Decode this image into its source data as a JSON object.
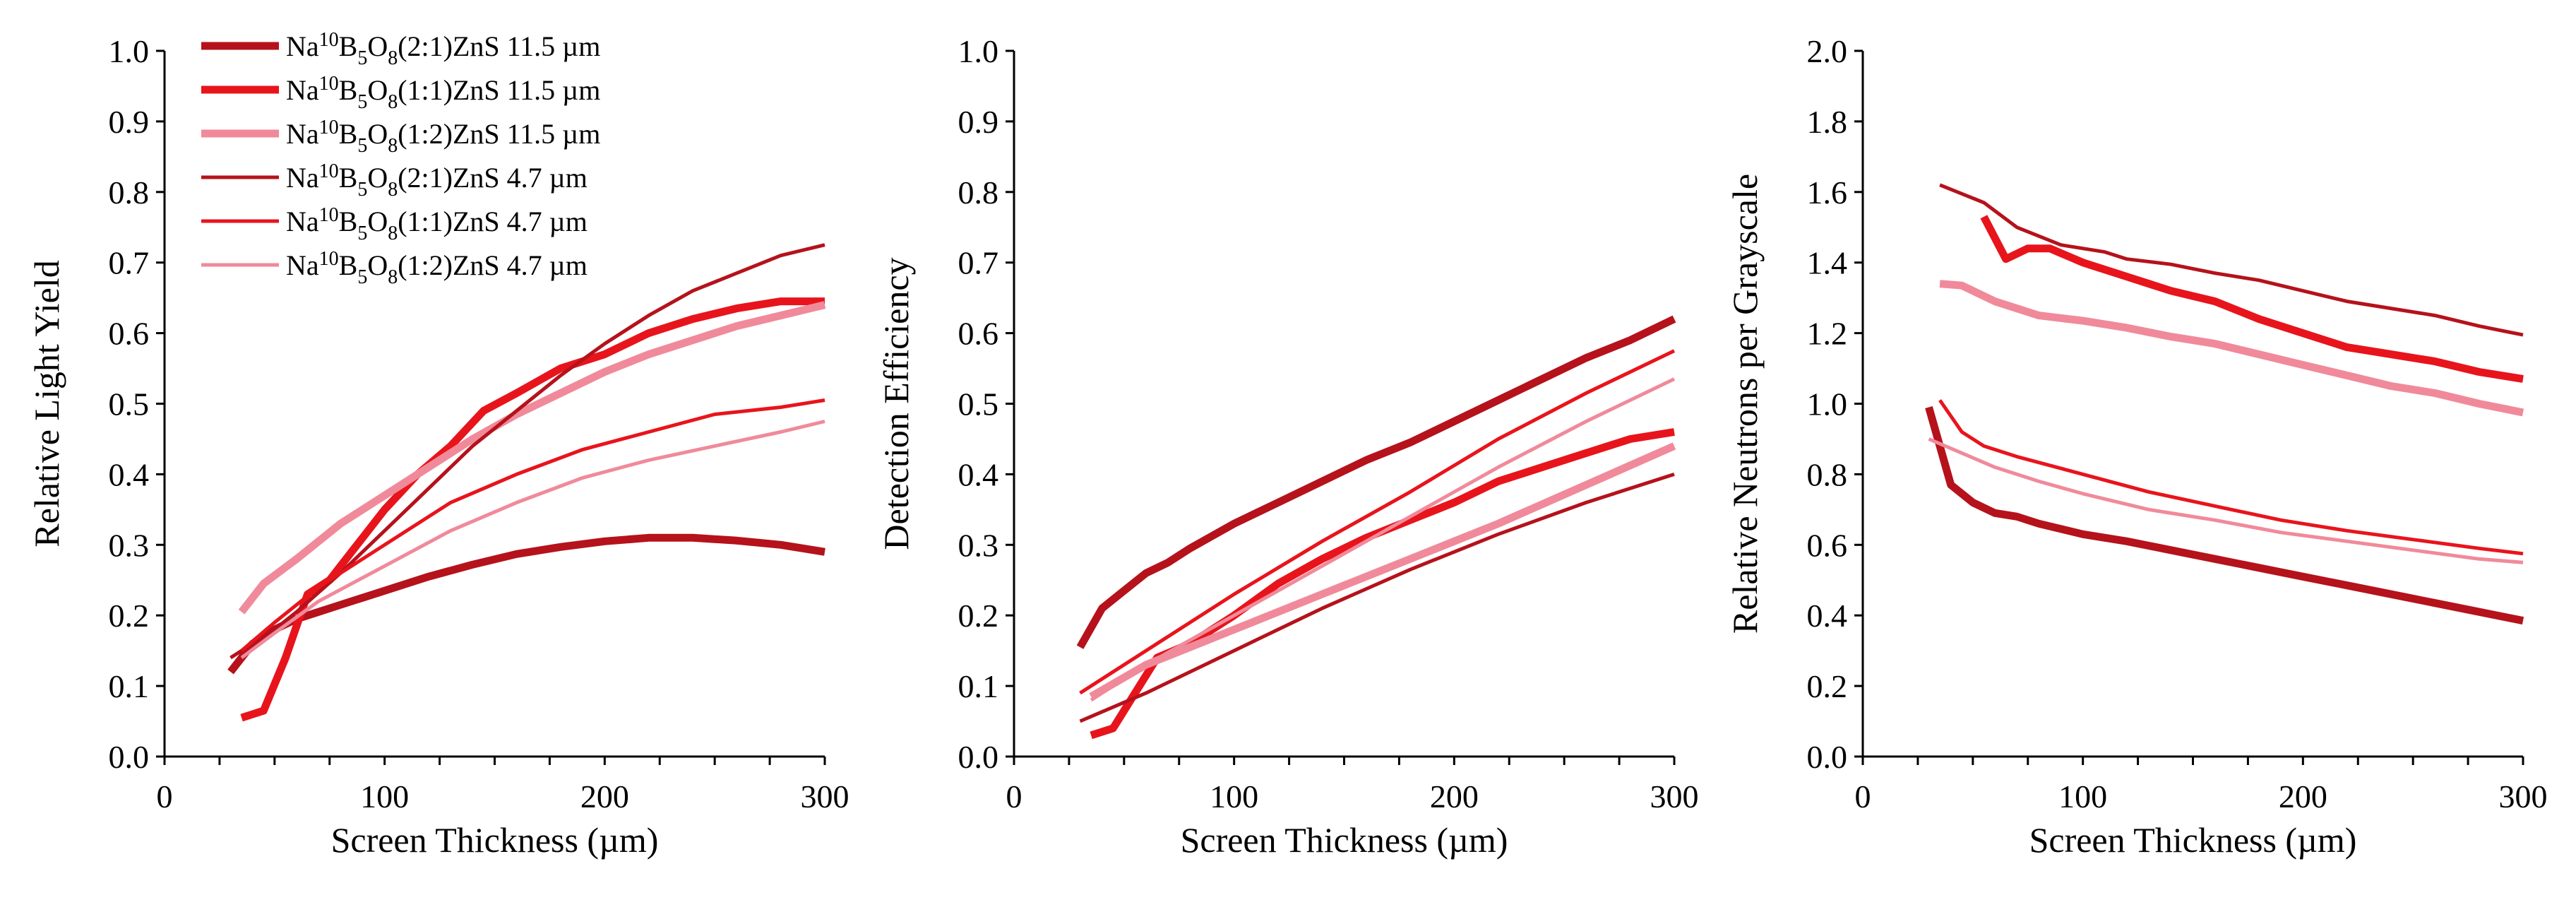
{
  "chart_data": [
    {
      "type": "line",
      "title": "",
      "xlabel": "Screen Thickness (µm)",
      "ylabel": "Relative Light Yield",
      "xlim": [
        0,
        300
      ],
      "ylim": [
        0,
        1.0
      ],
      "x_ticks": [
        "0",
        "100",
        "200",
        "300"
      ],
      "y_ticks": [
        "0.0",
        "0.1",
        "0.2",
        "0.3",
        "0.4",
        "0.5",
        "0.6",
        "0.7",
        "0.8",
        "0.9",
        "1.0"
      ],
      "legend": {
        "placement": "top-left",
        "entries": [
          {
            "base": "Na",
            "sup": "10",
            "b": "B",
            "sub1": "5",
            "o": "O",
            "sub2": "8",
            "rest": "(2:1)ZnS 11.5 µm",
            "color": "#b5121b",
            "weight": "thick"
          },
          {
            "base": "Na",
            "sup": "10",
            "b": "B",
            "sub1": "5",
            "o": "O",
            "sub2": "8",
            "rest": "(1:1)ZnS 11.5 µm",
            "color": "#e8141c",
            "weight": "thick"
          },
          {
            "base": "Na",
            "sup": "10",
            "b": "B",
            "sub1": "5",
            "o": "O",
            "sub2": "8",
            "rest": "(1:2)ZnS 11.5 µm",
            "color": "#f08a9a",
            "weight": "thick"
          },
          {
            "base": "Na",
            "sup": "10",
            "b": "B",
            "sub1": "5",
            "o": "O",
            "sub2": "8",
            "rest": "(2:1)ZnS 4.7 µm",
            "color": "#b5121b",
            "weight": "thin"
          },
          {
            "base": "Na",
            "sup": "10",
            "b": "B",
            "sub1": "5",
            "o": "O",
            "sub2": "8",
            "rest": "(1:1)ZnS 4.7 µm",
            "color": "#e8141c",
            "weight": "thin"
          },
          {
            "base": "Na",
            "sup": "10",
            "b": "B",
            "sub1": "5",
            "o": "O",
            "sub2": "8",
            "rest": "(1:2)ZnS 4.7 µm",
            "color": "#f08a9a",
            "weight": "thin"
          }
        ]
      },
      "series": [
        {
          "name": "Na10B5O8(2:1)ZnS 11.5 µm",
          "color": "#b5121b",
          "weight": "thick",
          "x": [
            30,
            40,
            50,
            60,
            70,
            80,
            90,
            100,
            120,
            140,
            160,
            180,
            200,
            220,
            240,
            260,
            280,
            300
          ],
          "y": [
            0.12,
            0.16,
            0.18,
            0.195,
            0.205,
            0.215,
            0.225,
            0.235,
            0.255,
            0.272,
            0.287,
            0.297,
            0.305,
            0.31,
            0.31,
            0.306,
            0.3,
            0.29
          ]
        },
        {
          "name": "Na10B5O8(1:1)ZnS 11.5 µm",
          "color": "#e8141c",
          "weight": "thick",
          "x": [
            35,
            45,
            55,
            65,
            75,
            85,
            100,
            115,
            130,
            145,
            160,
            180,
            200,
            220,
            240,
            260,
            280,
            300
          ],
          "y": [
            0.055,
            0.065,
            0.14,
            0.23,
            0.25,
            0.29,
            0.35,
            0.4,
            0.44,
            0.49,
            0.515,
            0.55,
            0.57,
            0.6,
            0.62,
            0.635,
            0.645,
            0.645
          ]
        },
        {
          "name": "Na10B5O8(1:2)ZnS 11.5 µm",
          "color": "#f08a9a",
          "weight": "thick",
          "x": [
            35,
            45,
            60,
            80,
            100,
            120,
            140,
            160,
            180,
            200,
            220,
            240,
            260,
            280,
            300
          ],
          "y": [
            0.205,
            0.245,
            0.28,
            0.33,
            0.37,
            0.41,
            0.45,
            0.485,
            0.515,
            0.545,
            0.57,
            0.59,
            0.61,
            0.625,
            0.64
          ]
        },
        {
          "name": "Na10B5O8(2:1)ZnS 4.7 µm",
          "color": "#b5121b",
          "weight": "thin",
          "x": [
            30,
            40,
            50,
            60,
            80,
            100,
            120,
            140,
            160,
            180,
            200,
            220,
            240,
            260,
            280,
            300
          ],
          "y": [
            0.14,
            0.16,
            0.18,
            0.205,
            0.26,
            0.32,
            0.38,
            0.44,
            0.49,
            0.54,
            0.585,
            0.625,
            0.66,
            0.685,
            0.71,
            0.725
          ]
        },
        {
          "name": "Na10B5O8(1:1)ZnS 4.7 µm",
          "color": "#e8141c",
          "weight": "thin",
          "x": [
            35,
            50,
            70,
            100,
            130,
            160,
            190,
            220,
            250,
            280,
            300
          ],
          "y": [
            0.15,
            0.19,
            0.24,
            0.3,
            0.36,
            0.4,
            0.435,
            0.46,
            0.485,
            0.495,
            0.505
          ]
        },
        {
          "name": "Na10B5O8(1:2)ZnS 4.7 µm",
          "color": "#f08a9a",
          "weight": "thin",
          "x": [
            35,
            50,
            70,
            100,
            130,
            160,
            190,
            220,
            250,
            280,
            300
          ],
          "y": [
            0.14,
            0.175,
            0.22,
            0.27,
            0.32,
            0.36,
            0.395,
            0.42,
            0.44,
            0.46,
            0.475
          ]
        }
      ]
    },
    {
      "type": "line",
      "title": "",
      "xlabel": "Screen Thickness (µm)",
      "ylabel": "Detection Efficiency",
      "xlim": [
        0,
        300
      ],
      "ylim": [
        0,
        1.0
      ],
      "x_ticks": [
        "0",
        "100",
        "200",
        "300"
      ],
      "y_ticks": [
        "0.0",
        "0.1",
        "0.2",
        "0.3",
        "0.4",
        "0.5",
        "0.6",
        "0.7",
        "0.8",
        "0.9",
        "1.0"
      ],
      "series": [
        {
          "name": "Na10B5O8(2:1)ZnS 11.5 µm",
          "color": "#b5121b",
          "weight": "thick",
          "x": [
            30,
            40,
            50,
            60,
            70,
            80,
            100,
            120,
            140,
            160,
            180,
            200,
            220,
            240,
            260,
            280,
            300
          ],
          "y": [
            0.155,
            0.21,
            0.235,
            0.26,
            0.275,
            0.295,
            0.33,
            0.36,
            0.39,
            0.42,
            0.445,
            0.475,
            0.505,
            0.535,
            0.565,
            0.59,
            0.62
          ]
        },
        {
          "name": "Na10B5O8(1:1)ZnS 11.5 µm",
          "color": "#e8141c",
          "weight": "thick",
          "x": [
            35,
            45,
            55,
            65,
            80,
            100,
            120,
            140,
            160,
            180,
            200,
            220,
            240,
            260,
            280,
            300
          ],
          "y": [
            0.03,
            0.04,
            0.09,
            0.14,
            0.16,
            0.2,
            0.245,
            0.28,
            0.31,
            0.335,
            0.36,
            0.39,
            0.41,
            0.43,
            0.45,
            0.46
          ]
        },
        {
          "name": "Na10B5O8(1:2)ZnS 11.5 µm",
          "color": "#f08a9a",
          "weight": "thick",
          "x": [
            35,
            60,
            100,
            140,
            180,
            220,
            260,
            300
          ],
          "y": [
            0.085,
            0.13,
            0.18,
            0.23,
            0.28,
            0.33,
            0.385,
            0.44
          ]
        },
        {
          "name": "Na10B5O8(2:1)ZnS 4.7 µm",
          "color": "#b5121b",
          "weight": "thin",
          "x": [
            30,
            60,
            100,
            140,
            180,
            220,
            260,
            300
          ],
          "y": [
            0.05,
            0.09,
            0.15,
            0.21,
            0.265,
            0.315,
            0.36,
            0.4
          ]
        },
        {
          "name": "Na10B5O8(1:1)ZnS 4.7 µm",
          "color": "#e8141c",
          "weight": "thin",
          "x": [
            30,
            60,
            100,
            140,
            180,
            220,
            260,
            300
          ],
          "y": [
            0.09,
            0.15,
            0.23,
            0.305,
            0.375,
            0.45,
            0.515,
            0.575
          ]
        },
        {
          "name": "Na10B5O8(1:2)ZnS 4.7 µm",
          "color": "#f08a9a",
          "weight": "thin",
          "x": [
            35,
            60,
            100,
            140,
            180,
            220,
            260,
            300
          ],
          "y": [
            0.08,
            0.13,
            0.2,
            0.27,
            0.34,
            0.41,
            0.475,
            0.535
          ]
        }
      ]
    },
    {
      "type": "line",
      "title": "",
      "xlabel": "Screen Thickness (µm)",
      "ylabel": "Relative Neutrons per Grayscale",
      "xlim": [
        0,
        300
      ],
      "ylim": [
        0,
        2.0
      ],
      "x_ticks": [
        "0",
        "100",
        "200",
        "300"
      ],
      "y_ticks": [
        "0.0",
        "0.2",
        "0.4",
        "0.6",
        "0.8",
        "1.0",
        "1.2",
        "1.4",
        "1.6",
        "1.8",
        "2.0"
      ],
      "series": [
        {
          "name": "Na10B5O8(2:1)ZnS 11.5 µm",
          "color": "#b5121b",
          "weight": "thick",
          "x": [
            30,
            40,
            50,
            60,
            70,
            80,
            100,
            120,
            140,
            160,
            180,
            200,
            220,
            240,
            260,
            280,
            300
          ],
          "y": [
            0.99,
            0.77,
            0.72,
            0.69,
            0.68,
            0.66,
            0.63,
            0.61,
            0.585,
            0.56,
            0.535,
            0.51,
            0.485,
            0.46,
            0.435,
            0.41,
            0.385
          ]
        },
        {
          "name": "Na10B5O8(1:1)ZnS 11.5 µm",
          "color": "#e8141c",
          "weight": "thick",
          "x": [
            55,
            65,
            75,
            85,
            100,
            120,
            140,
            160,
            180,
            200,
            220,
            240,
            260,
            280,
            300
          ],
          "y": [
            1.53,
            1.41,
            1.44,
            1.44,
            1.4,
            1.36,
            1.32,
            1.29,
            1.24,
            1.2,
            1.16,
            1.14,
            1.12,
            1.09,
            1.07
          ]
        },
        {
          "name": "Na10B5O8(1:2)ZnS 11.5 µm",
          "color": "#f08a9a",
          "weight": "thick",
          "x": [
            35,
            45,
            60,
            80,
            100,
            120,
            140,
            160,
            180,
            200,
            220,
            240,
            260,
            280,
            300
          ],
          "y": [
            1.34,
            1.335,
            1.29,
            1.25,
            1.235,
            1.215,
            1.19,
            1.17,
            1.14,
            1.11,
            1.08,
            1.05,
            1.03,
            1.0,
            0.975
          ]
        },
        {
          "name": "Na10B5O8(2:1)ZnS 4.7 µm",
          "color": "#b5121b",
          "weight": "thin",
          "x": [
            35,
            55,
            70,
            90,
            110,
            120,
            140,
            160,
            180,
            200,
            220,
            240,
            260,
            280,
            300
          ],
          "y": [
            1.62,
            1.57,
            1.5,
            1.45,
            1.43,
            1.41,
            1.395,
            1.37,
            1.35,
            1.32,
            1.29,
            1.27,
            1.25,
            1.22,
            1.195
          ]
        },
        {
          "name": "Na10B5O8(1:1)ZnS 4.7 µm",
          "color": "#e8141c",
          "weight": "thin",
          "x": [
            35,
            45,
            55,
            70,
            100,
            130,
            160,
            190,
            220,
            250,
            280,
            300
          ],
          "y": [
            1.01,
            0.92,
            0.88,
            0.85,
            0.8,
            0.75,
            0.71,
            0.67,
            0.64,
            0.615,
            0.59,
            0.575
          ]
        },
        {
          "name": "Na10B5O8(1:2)ZnS 4.7 µm",
          "color": "#f08a9a",
          "weight": "thin",
          "x": [
            30,
            45,
            60,
            80,
            100,
            130,
            160,
            190,
            220,
            250,
            280,
            300
          ],
          "y": [
            0.9,
            0.86,
            0.82,
            0.78,
            0.745,
            0.7,
            0.67,
            0.635,
            0.61,
            0.585,
            0.56,
            0.55
          ]
        }
      ]
    }
  ]
}
